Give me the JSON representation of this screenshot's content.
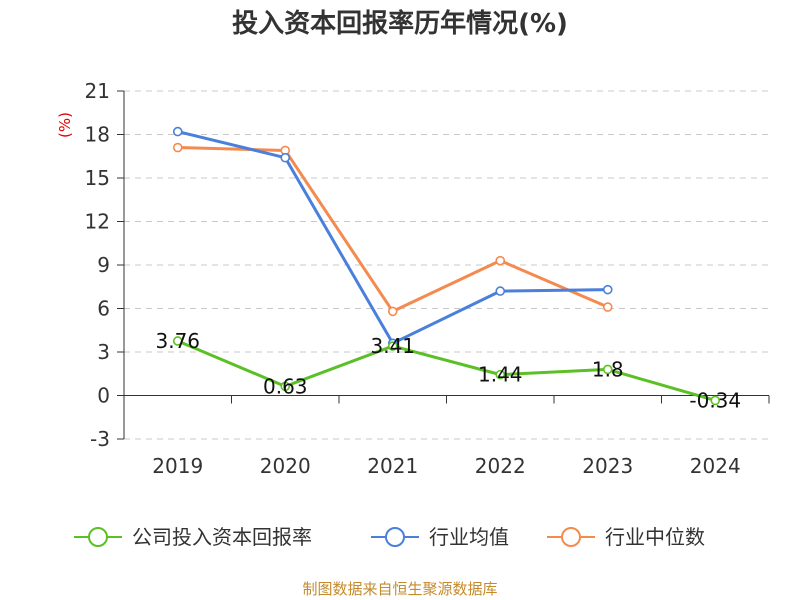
{
  "chart_data": {
    "type": "line",
    "title": "投入资本回报率历年情况(%)",
    "ylabel": "(%)",
    "categories": [
      "2019",
      "2020",
      "2021",
      "2022",
      "2023",
      "2024"
    ],
    "ylim": [
      -3,
      21
    ],
    "yticks": [
      -3,
      0,
      3,
      6,
      9,
      12,
      15,
      18,
      21
    ],
    "grid": true,
    "legend_position": "bottom",
    "series": [
      {
        "name": "公司投入资本回报率",
        "color": "#5bc025",
        "values": [
          3.76,
          0.63,
          3.41,
          1.44,
          1.8,
          -0.34
        ],
        "labels": [
          "3.76",
          "0.63",
          "3.41",
          "1.44",
          "1.8",
          "-0.34"
        ]
      },
      {
        "name": "行业均值",
        "color": "#4a7fdb",
        "values": [
          18.2,
          16.4,
          3.6,
          7.2,
          7.3,
          null
        ]
      },
      {
        "name": "行业中位数",
        "color": "#f58a4e",
        "values": [
          17.1,
          16.9,
          5.8,
          9.3,
          6.1,
          null
        ]
      }
    ]
  },
  "source": "制图数据来自恒生聚源数据库"
}
